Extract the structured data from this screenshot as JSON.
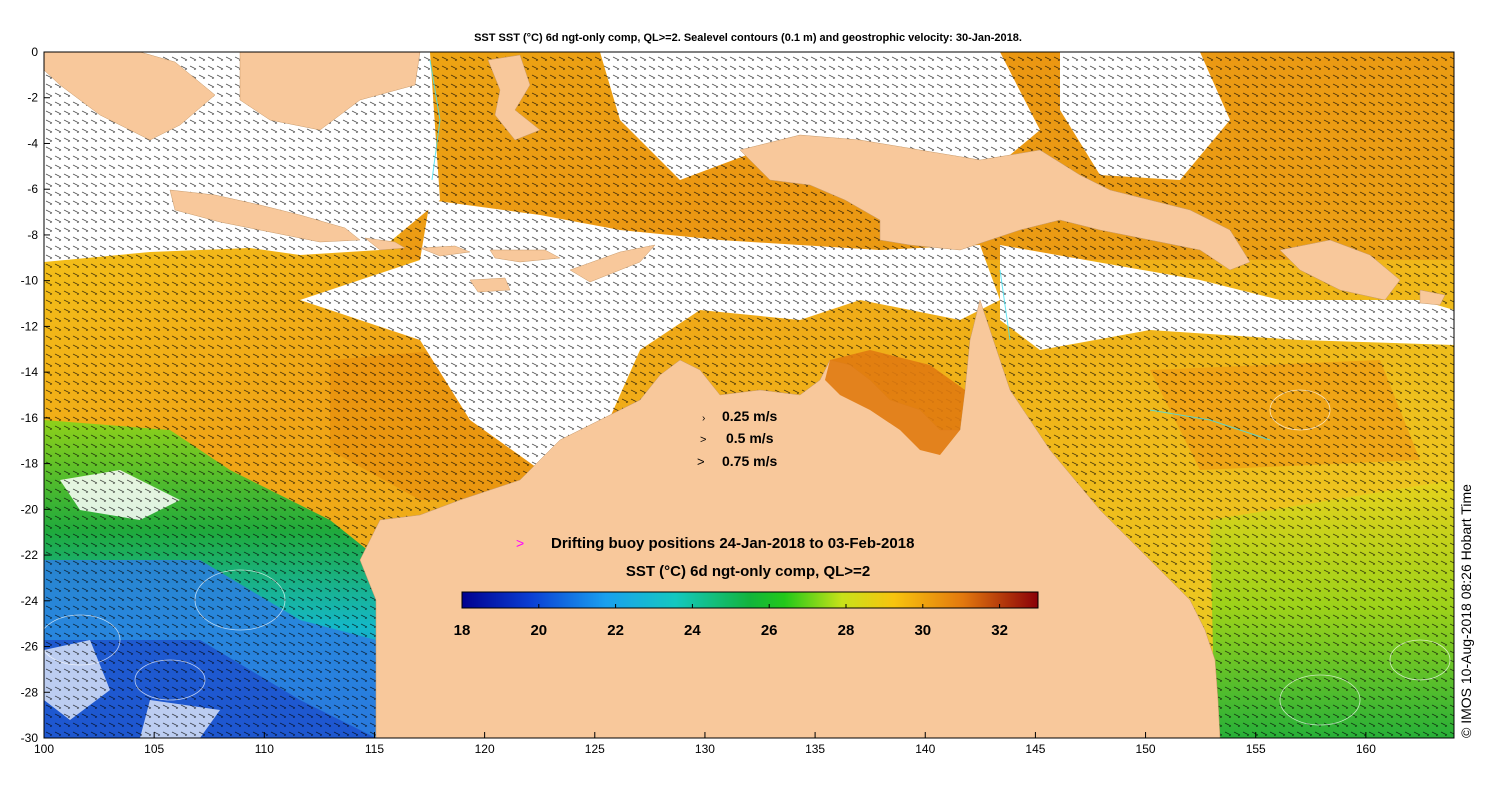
{
  "title": "SST SST (°C) 6d ngt-only comp, QL>=2. Sealevel contours (0.1 m) and geostrophic velocity: 30-Jan-2018.",
  "x_ticks": [
    "100",
    "105",
    "110",
    "115",
    "120",
    "125",
    "130",
    "135",
    "140",
    "145",
    "150",
    "155",
    "160"
  ],
  "y_ticks": [
    "0",
    "-2",
    "-4",
    "-6",
    "-8",
    "-10",
    "-12",
    "-14",
    "-16",
    "-18",
    "-20",
    "-22",
    "-24",
    "-26",
    "-28",
    "-30"
  ],
  "velocity_legend": [
    "0.25 m/s",
    "0.5 m/s",
    "0.75 m/s"
  ],
  "buoy_legend": "Drifting buoy positions 24-Jan-2018 to 03-Feb-2018",
  "colorbar": {
    "label": "SST (°C) 6d ngt-only comp, QL>=2",
    "min": 18,
    "max": 33,
    "ticks": [
      "18",
      "20",
      "22",
      "24",
      "26",
      "28",
      "30",
      "32"
    ]
  },
  "credit": "© IMOS 10-Aug-2018 08:26 Hobart Time",
  "colors": {
    "land": "#f8c89b",
    "cloud": "#ffffff",
    "buoy_marker": "#ff00ff",
    "warm": "#e8900e",
    "cool": "#2f8ee6"
  },
  "map_extent": {
    "lon": [
      100,
      164
    ],
    "lat": [
      -30,
      0
    ]
  }
}
